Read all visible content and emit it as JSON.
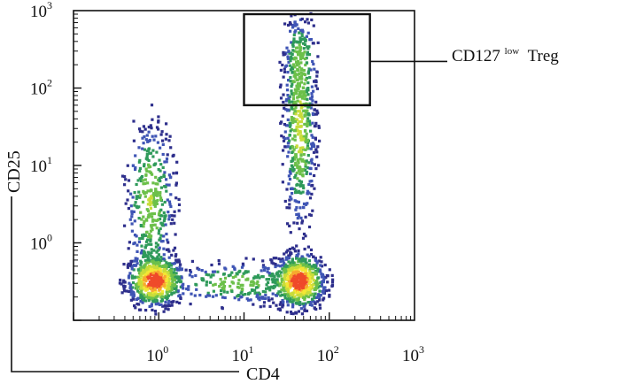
{
  "chart_data": {
    "type": "scatter",
    "subtype": "flow-cytometry-density-dot-plot",
    "title": "",
    "xlabel": "CD4",
    "ylabel": "CD25",
    "x_scale": "log",
    "y_scale": "log",
    "xlim": [
      0.1,
      1000
    ],
    "ylim": [
      0.1,
      1000
    ],
    "x_ticks": [
      {
        "value": 1,
        "base": "10",
        "exp": "0"
      },
      {
        "value": 10,
        "base": "10",
        "exp": "1"
      },
      {
        "value": 100,
        "base": "10",
        "exp": "2"
      },
      {
        "value": 1000,
        "base": "10",
        "exp": "3"
      }
    ],
    "y_ticks": [
      {
        "value": 1,
        "base": "10",
        "exp": "0"
      },
      {
        "value": 10,
        "base": "10",
        "exp": "1"
      },
      {
        "value": 100,
        "base": "10",
        "exp": "2"
      },
      {
        "value": 1000,
        "base": "10",
        "exp": "3"
      }
    ],
    "density_colors": [
      "#2e2f8c",
      "#3f55b5",
      "#2f9a5a",
      "#6cc04a",
      "#c9dc3a",
      "#f3e734",
      "#f7a92f",
      "#ef4a2a"
    ],
    "populations": [
      {
        "label": "CD4- population",
        "center": [
          0.9,
          0.32
        ],
        "peak_density": "high"
      },
      {
        "label": "CD4+ population",
        "center": [
          45,
          0.32
        ],
        "peak_density": "high"
      },
      {
        "label": "CD4+ CD25+ stalk",
        "center": [
          45,
          20
        ],
        "peak_density": "medium"
      }
    ],
    "gate": {
      "label_main": "CD127",
      "label_sup": "low",
      "label_suffix": "Treg",
      "x_range": [
        10,
        300
      ],
      "y_range": [
        60,
        900
      ]
    }
  }
}
